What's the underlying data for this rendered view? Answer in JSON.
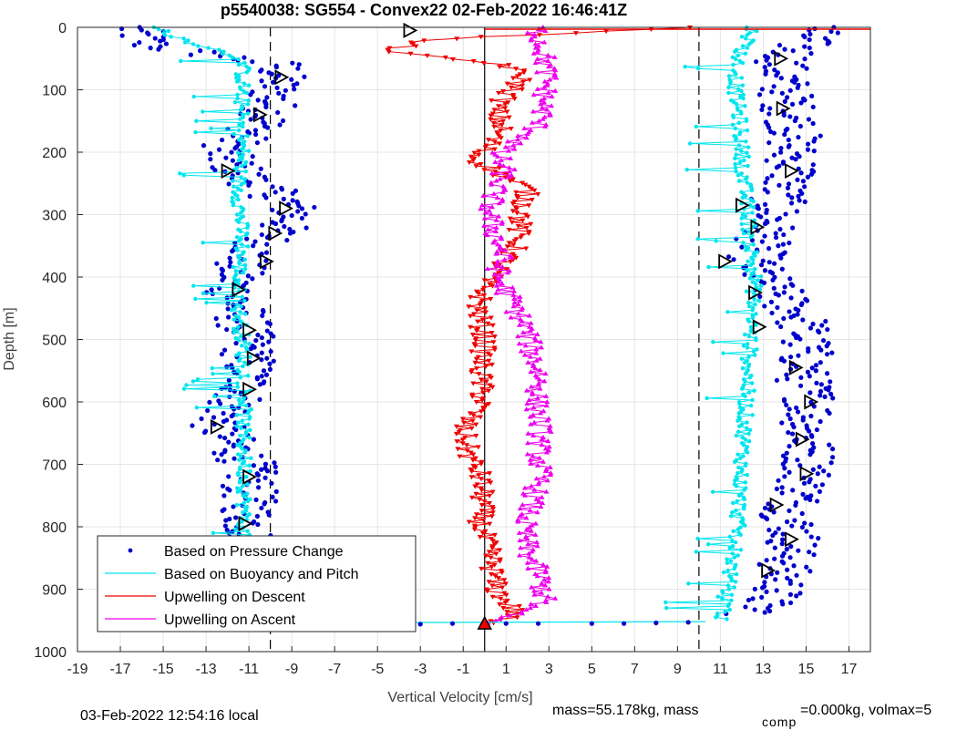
{
  "chart_data": {
    "type": "scatter",
    "title": "p5540038: SG554 - Convex22 02-Feb-2022 16:46:41Z",
    "xlabel": "Vertical Velocity [cm/s]",
    "ylabel": "Depth [m]",
    "xlim": [
      -19,
      18
    ],
    "ylim": [
      0,
      1000
    ],
    "y_reversed": true,
    "grid": true,
    "legend_position": "bottom-left",
    "x_ticks": [
      "-19",
      "-17",
      "-15",
      "-13",
      "-11",
      "-9",
      "-7",
      "-5",
      "-3",
      "-1",
      "1",
      "3",
      "5",
      "7",
      "9",
      "11",
      "13",
      "15",
      "17"
    ],
    "y_ticks": [
      "0",
      "100",
      "200",
      "300",
      "400",
      "500",
      "600",
      "700",
      "800",
      "900",
      "1000"
    ],
    "reference_lines": [
      {
        "x": -10,
        "style": "dashed",
        "color": "#000000"
      },
      {
        "x": 0,
        "style": "solid",
        "color": "#000000"
      },
      {
        "x": 10,
        "style": "dashed",
        "color": "#000000"
      }
    ],
    "series": [
      {
        "name": "Based on Pressure Change",
        "style": "dots",
        "color": "#0000cc",
        "branches": [
          {
            "depth": [
              0,
              30,
              60,
              100,
              150,
              200,
              240,
              280,
              300,
              340,
              380,
              420,
              480,
              530,
              580,
              640,
              700,
              760,
              800,
              860,
              900,
              940
            ],
            "x": [
              -16.5,
              -15.5,
              -9.5,
              -9.8,
              -10.2,
              -12.3,
              -11.2,
              -9.2,
              -8.8,
              -10.2,
              -11.5,
              -11.8,
              -11.2,
              -11.0,
              -11.2,
              -12.5,
              -11.0,
              -11.0,
              -11.0,
              -10.5,
              -9.2,
              -10.2
            ]
          },
          {
            "depth": [
              0,
              20,
              60,
              100,
              130,
              160,
              200,
              230,
              260,
              300,
              340,
              380,
              420,
              470,
              520,
              560,
              600,
              650,
              700,
              740,
              780,
              820,
              860,
              900,
              940
            ],
            "x": [
              15.5,
              15.0,
              13.8,
              14.0,
              14.2,
              14.5,
              14.3,
              14.5,
              13.8,
              13.5,
              13.0,
              12.5,
              13.5,
              14.8,
              15.0,
              14.8,
              15.3,
              15.0,
              15.2,
              14.8,
              14.2,
              14.5,
              14.0,
              13.8,
              12.5
            ]
          }
        ]
      },
      {
        "name": "Based on Buoyancy and Pitch",
        "style": "line-markers",
        "color": "#00e5ee",
        "branches": [
          {
            "depth": [
              0,
              20,
              50,
              100,
              150,
              200,
              250,
              300,
              350,
              400,
              450,
              500,
              550,
              600,
              650,
              700,
              750,
              800,
              850,
              900,
              950
            ],
            "x": [
              -15.5,
              -14.0,
              -11.3,
              -11.3,
              -11.4,
              -11.3,
              -11.5,
              -11.4,
              -11.3,
              -11.5,
              -11.5,
              -11.3,
              -11.2,
              -11.2,
              -11.3,
              -11.2,
              -11.2,
              -11.3,
              -11.2,
              -11.0,
              -10.8
            ]
          },
          {
            "depth": [
              0,
              20,
              50,
              100,
              150,
              200,
              250,
              300,
              350,
              400,
              450,
              500,
              550,
              600,
              650,
              700,
              750,
              800,
              850,
              900,
              950
            ],
            "x": [
              12.5,
              12.3,
              11.8,
              11.7,
              11.9,
              12.0,
              12.1,
              12.3,
              12.4,
              12.6,
              12.5,
              12.4,
              12.3,
              12.2,
              12.1,
              12.0,
              11.9,
              11.8,
              11.6,
              11.3,
              11.0
            ]
          }
        ]
      },
      {
        "name": "Upwelling on Descent",
        "style": "line-markers",
        "color": "#ee0000",
        "branches": [
          {
            "depth": [
              0,
              20,
              40,
              60,
              80,
              100,
              130,
              160,
              190,
              210,
              230,
              260,
              290,
              320,
              350,
              380,
              410,
              450,
              500,
              550,
              600,
              640,
              680,
              720,
              760,
              800,
              850,
              900,
              940,
              955
            ],
            "x": [
              10.0,
              -3.0,
              -4.5,
              1.0,
              1.8,
              1.3,
              0.5,
              0.8,
              0.2,
              -0.5,
              0.5,
              2.0,
              1.8,
              1.6,
              1.5,
              0.8,
              0.0,
              -0.3,
              0.0,
              -0.2,
              -0.1,
              -1.0,
              -0.8,
              -0.2,
              -0.1,
              -0.2,
              0.3,
              0.5,
              1.5,
              0.0
            ]
          }
        ]
      },
      {
        "name": "Upwelling on Ascent",
        "style": "line-markers",
        "color": "#ee00ee",
        "branches": [
          {
            "depth": [
              955,
              920,
              880,
              840,
              800,
              760,
              720,
              680,
              640,
              600,
              560,
              520,
              480,
              440,
              400,
              360,
              320,
              300,
              280,
              260,
              230,
              200,
              170,
              140,
              110,
              80,
              50,
              20,
              0
            ],
            "x": [
              0.0,
              2.8,
              2.6,
              2.0,
              1.8,
              2.2,
              2.6,
              2.5,
              2.6,
              2.4,
              2.6,
              2.2,
              1.9,
              1.3,
              0.6,
              0.8,
              0.4,
              0.2,
              0.3,
              0.5,
              0.9,
              0.6,
              2.2,
              2.7,
              2.8,
              2.9,
              2.8,
              2.6,
              2.4
            ]
          }
        ]
      }
    ],
    "triangle_markers": [
      {
        "x": -3.5,
        "depth": 5
      },
      {
        "x": -9.5,
        "depth": 80
      },
      {
        "x": -10.5,
        "depth": 140
      },
      {
        "x": -12.0,
        "depth": 230
      },
      {
        "x": -9.3,
        "depth": 290
      },
      {
        "x": -9.8,
        "depth": 330
      },
      {
        "x": -10.2,
        "depth": 375
      },
      {
        "x": -11.5,
        "depth": 420
      },
      {
        "x": -11.0,
        "depth": 485
      },
      {
        "x": -10.8,
        "depth": 530
      },
      {
        "x": -11.0,
        "depth": 580
      },
      {
        "x": -12.5,
        "depth": 640
      },
      {
        "x": -11.0,
        "depth": 720
      },
      {
        "x": -11.2,
        "depth": 795
      },
      {
        "x": -10.2,
        "depth": 875
      },
      {
        "x": -9.3,
        "depth": 915
      },
      {
        "x": 13.8,
        "depth": 50
      },
      {
        "x": 13.9,
        "depth": 130
      },
      {
        "x": 14.3,
        "depth": 230
      },
      {
        "x": 12.0,
        "depth": 285
      },
      {
        "x": 12.7,
        "depth": 320
      },
      {
        "x": 11.2,
        "depth": 375
      },
      {
        "x": 12.6,
        "depth": 425
      },
      {
        "x": 12.8,
        "depth": 480
      },
      {
        "x": 14.5,
        "depth": 545
      },
      {
        "x": 15.2,
        "depth": 600
      },
      {
        "x": 14.8,
        "depth": 660
      },
      {
        "x": 15.0,
        "depth": 715
      },
      {
        "x": 13.6,
        "depth": 765
      },
      {
        "x": 14.3,
        "depth": 820
      },
      {
        "x": 13.2,
        "depth": 870
      }
    ],
    "apex_markers": [
      {
        "x": -10.2,
        "depth": 952,
        "color": "#ee0000"
      },
      {
        "x": 0.0,
        "depth": 955,
        "color": "#ee0000"
      }
    ],
    "surface_line": {
      "depth": 3,
      "x_from": 0.0,
      "x_to": 18.0
    }
  },
  "footer": {
    "local_time": "03-Feb-2022 12:54:16 local",
    "mass_text": "mass=55.178kg, mass",
    "comp_sub": "comp",
    "comp_text": "=0.000kg, volmax=5"
  }
}
